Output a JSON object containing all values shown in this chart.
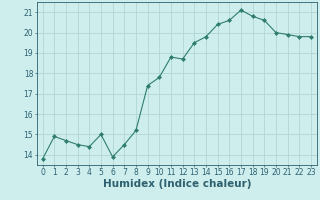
{
  "x": [
    0,
    1,
    2,
    3,
    4,
    5,
    6,
    7,
    8,
    9,
    10,
    11,
    12,
    13,
    14,
    15,
    16,
    17,
    18,
    19,
    20,
    21,
    22,
    23
  ],
  "y": [
    13.8,
    14.9,
    14.7,
    14.5,
    14.4,
    15.0,
    13.9,
    14.5,
    15.2,
    17.4,
    17.8,
    18.8,
    18.7,
    19.5,
    19.8,
    20.4,
    20.6,
    21.1,
    20.8,
    20.6,
    20.0,
    19.9,
    19.8,
    19.8
  ],
  "line_color": "#2e7d6e",
  "marker": "D",
  "marker_size": 2.0,
  "bg_color": "#ceeeed",
  "grid_color": "#b0d5d3",
  "xlabel": "Humidex (Indice chaleur)",
  "xlim": [
    -0.5,
    23.5
  ],
  "ylim": [
    13.5,
    21.5
  ],
  "yticks": [
    14,
    15,
    16,
    17,
    18,
    19,
    20,
    21
  ],
  "xticks": [
    0,
    1,
    2,
    3,
    4,
    5,
    6,
    7,
    8,
    9,
    10,
    11,
    12,
    13,
    14,
    15,
    16,
    17,
    18,
    19,
    20,
    21,
    22,
    23
  ],
  "xtick_labels": [
    "0",
    "1",
    "2",
    "3",
    "4",
    "5",
    "6",
    "7",
    "8",
    "9",
    "10",
    "11",
    "12",
    "13",
    "14",
    "15",
    "16",
    "17",
    "18",
    "19",
    "20",
    "21",
    "22",
    "23"
  ],
  "text_color": "#2e6070",
  "font_size": 5.5,
  "xlabel_font_size": 7.5
}
